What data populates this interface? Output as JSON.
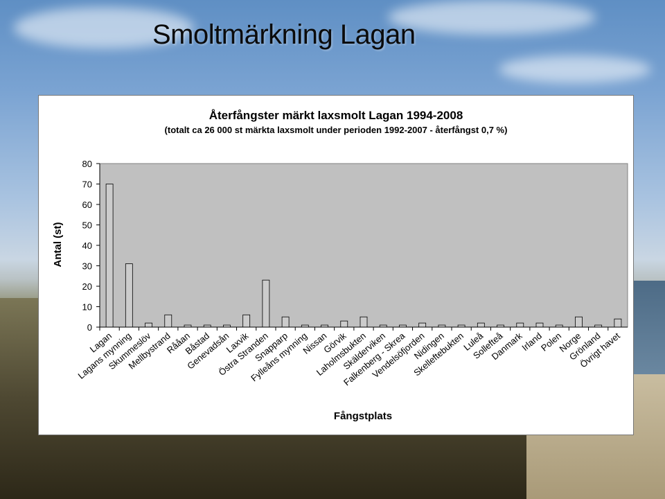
{
  "slide": {
    "title": "Smoltmärkning Lagan"
  },
  "chart_data": {
    "type": "bar",
    "title": "Återfångster märkt laxsmolt Lagan 1994-2008",
    "subtitle": "(totalt ca 26 000 st märkta laxsmolt under perioden 1992-2007 - återfångst 0,7 %)",
    "xlabel": "Fångstplats",
    "ylabel": "Antal (st)",
    "ylim": [
      0,
      80
    ],
    "yticks": [
      0,
      10,
      20,
      30,
      40,
      50,
      60,
      70,
      80
    ],
    "categories": [
      "Lagan",
      "Lagans mynning",
      "Skummeslöv",
      "Mellbystrand",
      "Rååan",
      "Båstad",
      "Genevadsån",
      "Laxvik",
      "Östra Stranden",
      "Snapparp",
      "Fylleåns mynning",
      "Nissan",
      "Görvik",
      "Laholmsbukten",
      "Skälderviken",
      "Falkenberg - Skrea",
      "Vendelsöfjorden",
      "Nidingen",
      "Skelleftebukten",
      "Luleå",
      "Sollefteå",
      "Danmark",
      "Irland",
      "Polen",
      "Norge",
      "Grönland",
      "Övrigt havet"
    ],
    "values": [
      70,
      31,
      2,
      6,
      1,
      1,
      1,
      6,
      23,
      5,
      1,
      1,
      3,
      5,
      1,
      1,
      2,
      1,
      1,
      2,
      1,
      2,
      2,
      1,
      5,
      1,
      4
    ],
    "grid": false,
    "bar_color": "#cccccc",
    "plot_background": "#c0c0c0"
  }
}
